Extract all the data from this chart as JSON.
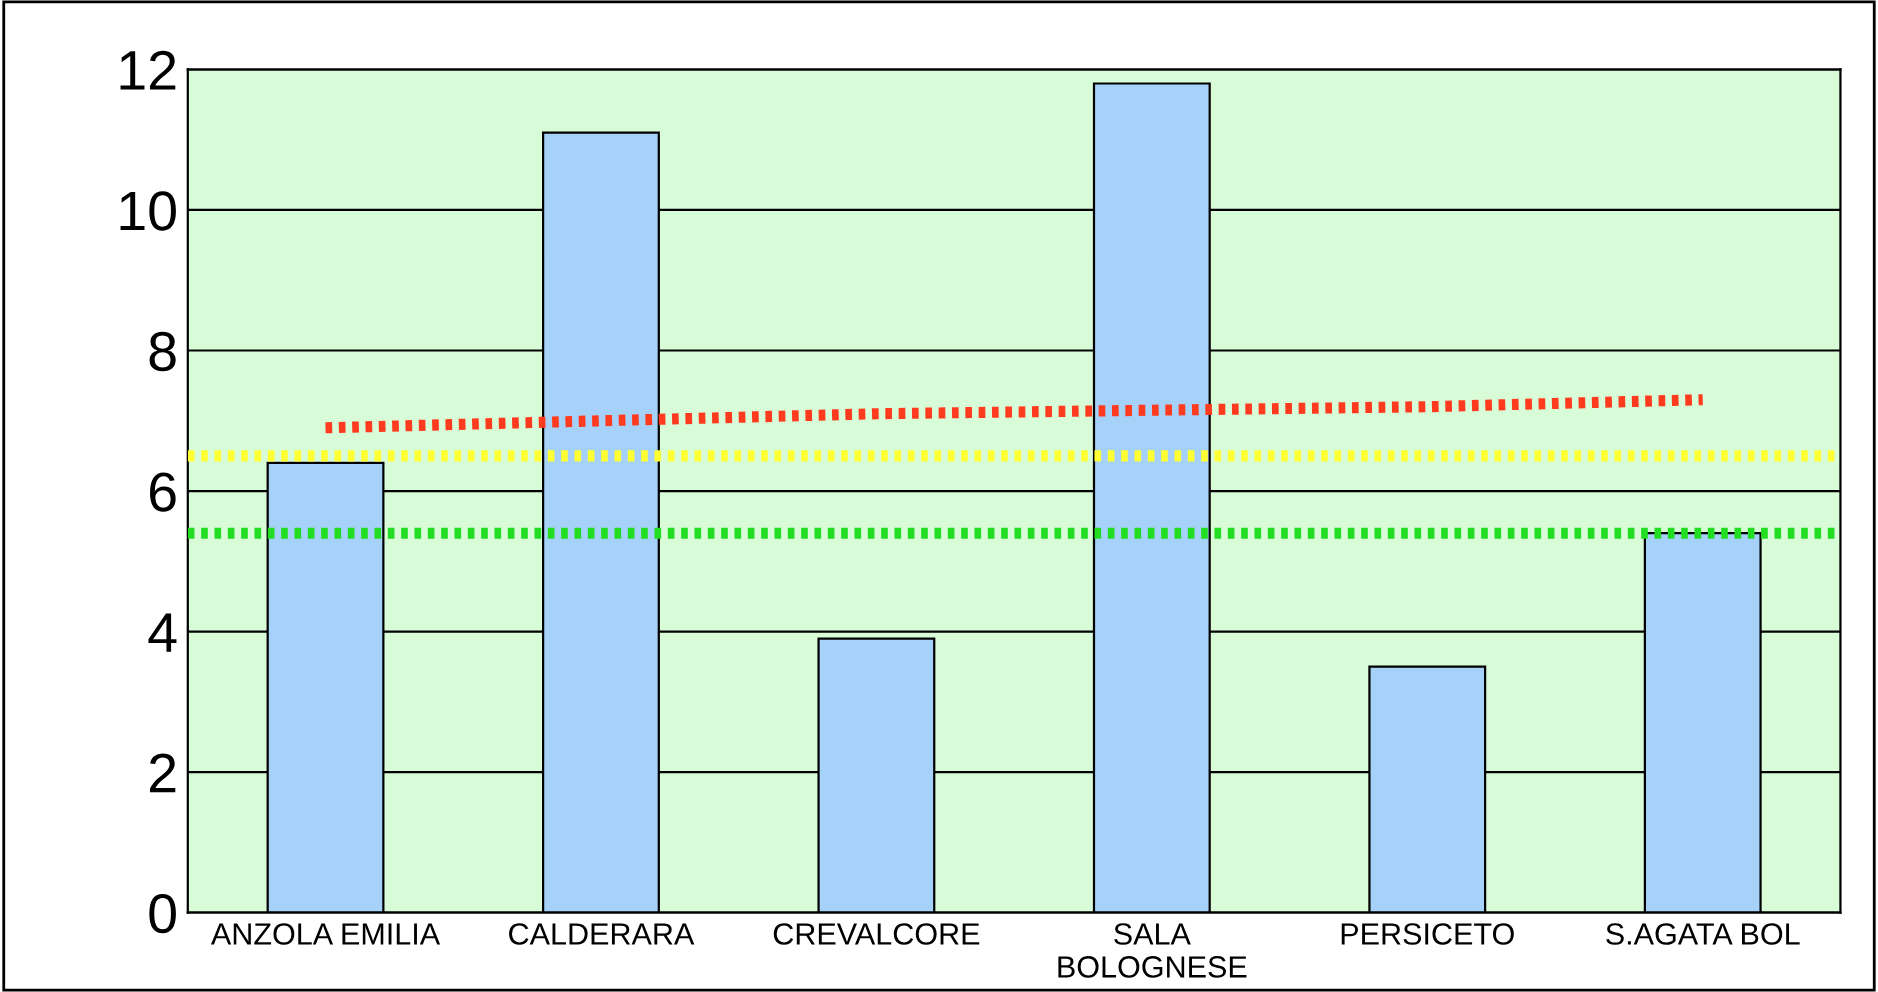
{
  "chart_data": {
    "type": "bar",
    "categories": [
      "ANZOLA EMILIA",
      "CALDERARA",
      "CREVALCORE",
      "SALA\nBOLOGNESE",
      "PERSICETO",
      "S.AGATA BOL"
    ],
    "series": [
      {
        "color": "#a6d2fa",
        "values": [
          6.4,
          11.1,
          3.9,
          11.8,
          3.5,
          5.4
        ]
      },
      {
        "type": "line",
        "color": "#ff3b1f",
        "line_style": "dotted",
        "marker": "none",
        "values": [
          6.9,
          7.0,
          7.1,
          7.15,
          7.2,
          7.3
        ]
      }
    ],
    "ref_lines": [
      {
        "axis": "y",
        "value": 6.5,
        "color": "#ffff33",
        "line_style": "dotted"
      },
      {
        "axis": "y",
        "value": 5.4,
        "color": "#22dd22",
        "line_style": "dotted"
      }
    ],
    "ylim": [
      0,
      12
    ],
    "yticks": [
      0,
      2,
      4,
      6,
      8,
      10,
      12
    ],
    "grid": "y",
    "legend": false
  }
}
